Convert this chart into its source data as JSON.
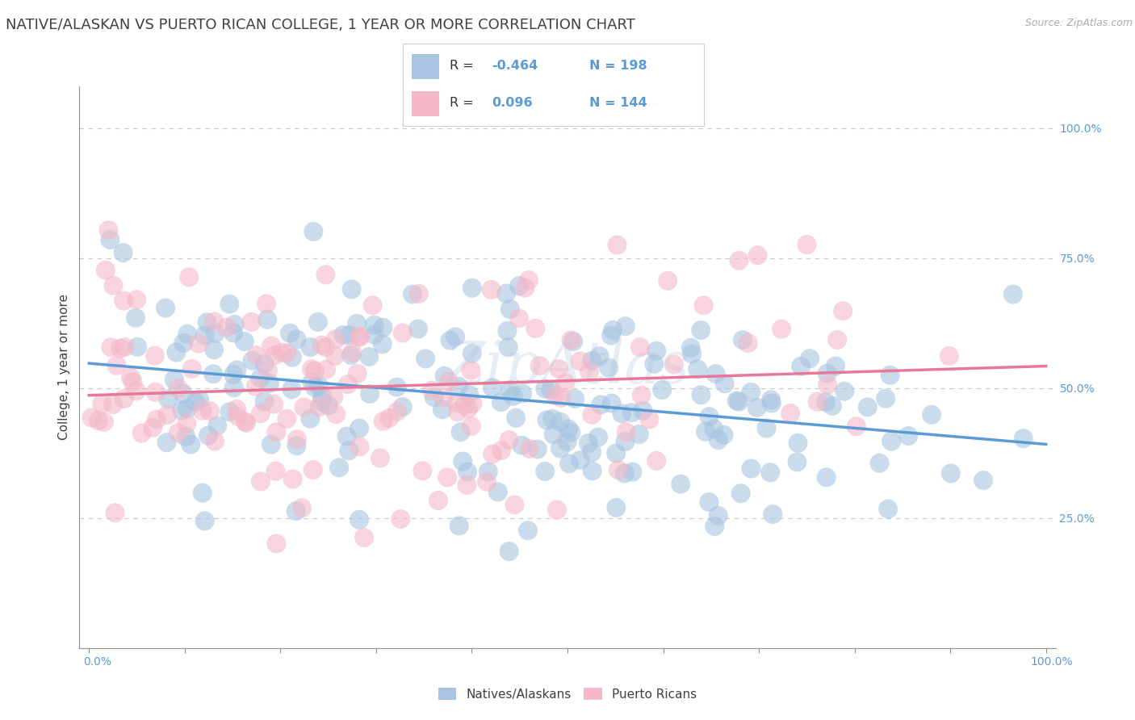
{
  "title": "NATIVE/ALASKAN VS PUERTO RICAN COLLEGE, 1 YEAR OR MORE CORRELATION CHART",
  "source": "Source: ZipAtlas.com",
  "ylabel": "College, 1 year or more",
  "legend_entries": [
    {
      "label": "Natives/Alaskans",
      "color": "#a8c4e0",
      "R": -0.464,
      "N": 198
    },
    {
      "label": "Puerto Ricans",
      "color": "#f4b8c8",
      "R": 0.096,
      "N": 144
    }
  ],
  "blue_line_color": "#5b9bd5",
  "pink_line_color": "#e8789a",
  "blue_dot_color": "#a8c4e0",
  "pink_dot_color": "#f4b8c8",
  "axis_label_color": "#5b9bd5",
  "title_color": "#404040",
  "grid_color": "#c8c8c8",
  "background_color": "#ffffff",
  "right_y_tick_labels": [
    "25.0%",
    "50.0%",
    "75.0%",
    "100.0%"
  ],
  "right_y_ticks": [
    0.25,
    0.5,
    0.75,
    1.0
  ],
  "seed": 12,
  "native_R": -0.464,
  "native_N": 198,
  "puerto_R": 0.096,
  "puerto_N": 144
}
